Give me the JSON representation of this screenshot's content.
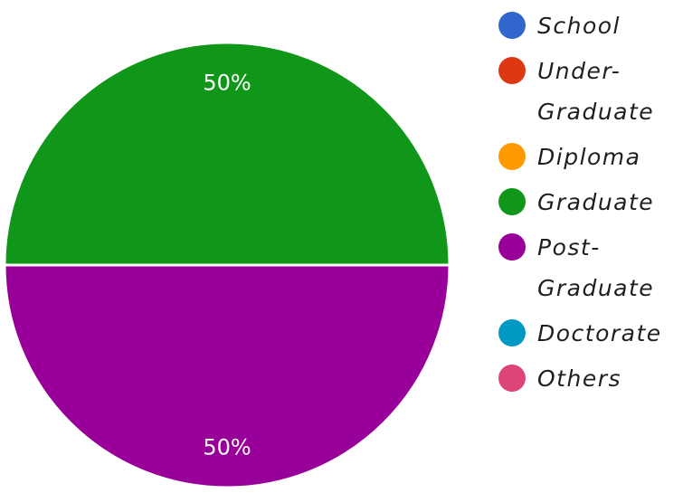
{
  "chart_data": {
    "type": "pie",
    "title": "",
    "categories": [
      "School",
      "Under-Graduate",
      "Diploma",
      "Graduate",
      "Post-Graduate",
      "Doctorate",
      "Others"
    ],
    "legend": [
      {
        "lines": [
          "School"
        ],
        "color": "#3366cc"
      },
      {
        "lines": [
          "Under-",
          "Graduate"
        ],
        "color": "#dc3912"
      },
      {
        "lines": [
          "Diploma"
        ],
        "color": "#ff9900"
      },
      {
        "lines": [
          "Graduate"
        ],
        "color": "#109618"
      },
      {
        "lines": [
          "Post-",
          "Graduate"
        ],
        "color": "#990099"
      },
      {
        "lines": [
          "Doctorate"
        ],
        "color": "#0099c6"
      },
      {
        "lines": [
          "Others"
        ],
        "color": "#dd4477"
      }
    ],
    "values": [
      0,
      0,
      0,
      50,
      50,
      0,
      0
    ],
    "slice_labels": [
      "",
      "",
      "",
      "50%",
      "50%",
      "",
      ""
    ],
    "legend_position": "right"
  }
}
